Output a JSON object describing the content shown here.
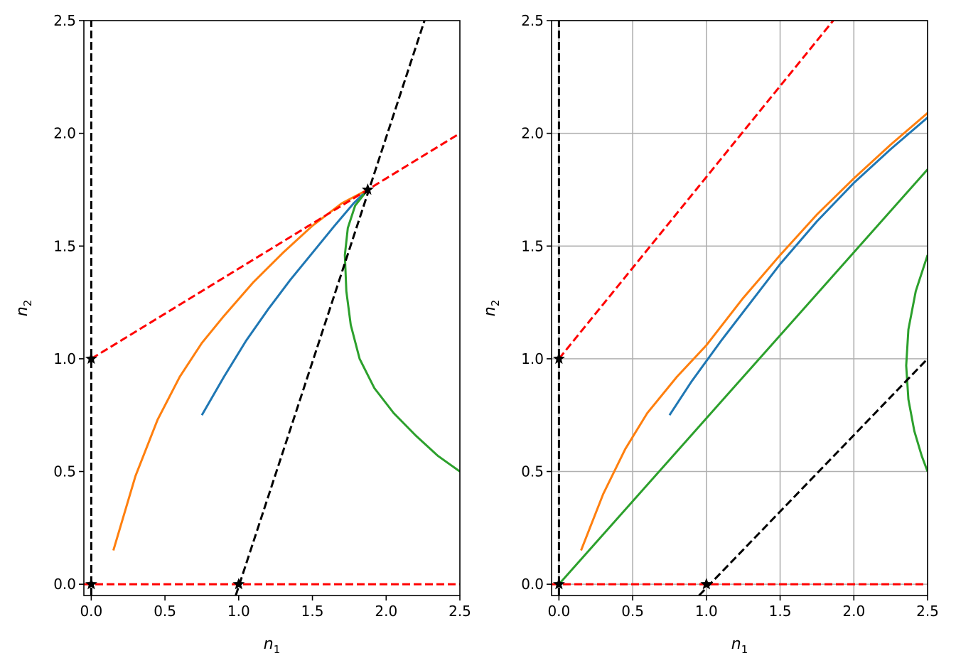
{
  "chart_data": [
    {
      "type": "line",
      "title": "",
      "xlabel": {
        "main": "n",
        "sub": "1"
      },
      "ylabel": {
        "main": "n",
        "sub": "2"
      },
      "xlim": [
        -0.05,
        2.5
      ],
      "ylim": [
        -0.05,
        2.5
      ],
      "grid": false,
      "xticks": [
        0.0,
        0.5,
        1.0,
        1.5,
        2.0,
        2.5
      ],
      "yticks": [
        0.0,
        0.5,
        1.0,
        1.5,
        2.0,
        2.5
      ],
      "xtick_labels": [
        "0.0",
        "0.5",
        "1.0",
        "1.5",
        "2.0",
        "2.5"
      ],
      "ytick_labels": [
        "0.0",
        "0.5",
        "1.0",
        "1.5",
        "2.0",
        "2.5"
      ],
      "nullclines": [
        {
          "style": "dashed",
          "color": "#ff0000",
          "points": [
            [
              0,
              1.0
            ],
            [
              2.5,
              2.0
            ]
          ]
        },
        {
          "style": "dashed",
          "color": "#ff0000",
          "points": [
            [
              -0.05,
              0
            ],
            [
              2.5,
              0
            ]
          ]
        },
        {
          "style": "dashed",
          "color": "#000000",
          "points": [
            [
              0,
              -0.05
            ],
            [
              0,
              2.5
            ]
          ]
        },
        {
          "style": "dashed",
          "color": "#000000",
          "points": [
            [
              0.98,
              -0.05
            ],
            [
              2.26,
              2.5
            ]
          ]
        }
      ],
      "series": [
        {
          "color": "#1f77b4",
          "points": [
            [
              0.75,
              0.75
            ],
            [
              0.9,
              0.92
            ],
            [
              1.05,
              1.08
            ],
            [
              1.2,
              1.22
            ],
            [
              1.35,
              1.35
            ],
            [
              1.5,
              1.47
            ],
            [
              1.65,
              1.59
            ],
            [
              1.78,
              1.69
            ],
            [
              1.875,
              1.75
            ]
          ]
        },
        {
          "color": "#ff7f0e",
          "points": [
            [
              0.15,
              0.15
            ],
            [
              0.3,
              0.48
            ],
            [
              0.45,
              0.73
            ],
            [
              0.6,
              0.92
            ],
            [
              0.75,
              1.07
            ],
            [
              0.9,
              1.19
            ],
            [
              1.1,
              1.34
            ],
            [
              1.3,
              1.47
            ],
            [
              1.5,
              1.59
            ],
            [
              1.7,
              1.69
            ],
            [
              1.875,
              1.75
            ]
          ]
        },
        {
          "color": "#2ca02c",
          "points": [
            [
              1.875,
              1.75
            ],
            [
              1.79,
              1.68
            ],
            [
              1.74,
              1.58
            ],
            [
              1.72,
              1.46
            ],
            [
              1.73,
              1.3
            ],
            [
              1.76,
              1.15
            ],
            [
              1.82,
              1.0
            ],
            [
              1.92,
              0.87
            ],
            [
              2.05,
              0.76
            ],
            [
              2.2,
              0.66
            ],
            [
              2.35,
              0.57
            ],
            [
              2.5,
              0.5
            ]
          ]
        }
      ],
      "fixed_points": [
        [
          0,
          0
        ],
        [
          0,
          1.0
        ],
        [
          1.0,
          0
        ],
        [
          1.875,
          1.75
        ]
      ]
    },
    {
      "type": "line",
      "title": "",
      "xlabel": {
        "main": "n",
        "sub": "1"
      },
      "ylabel": {
        "main": "n",
        "sub": "2"
      },
      "xlim": [
        -0.05,
        2.5
      ],
      "ylim": [
        -0.05,
        2.5
      ],
      "grid": true,
      "xticks": [
        0.0,
        0.5,
        1.0,
        1.5,
        2.0,
        2.5
      ],
      "yticks": [
        0.0,
        0.5,
        1.0,
        1.5,
        2.0,
        2.5
      ],
      "xtick_labels": [
        "0.0",
        "0.5",
        "1.0",
        "1.5",
        "2.0",
        "2.5"
      ],
      "ytick_labels": [
        "0.0",
        "0.5",
        "1.0",
        "1.5",
        "2.0",
        "2.5"
      ],
      "nullclines": [
        {
          "style": "dashed",
          "color": "#ff0000",
          "points": [
            [
              0,
              1.0
            ],
            [
              1.86,
              2.5
            ]
          ]
        },
        {
          "style": "dashed",
          "color": "#ff0000",
          "points": [
            [
              -0.05,
              0
            ],
            [
              2.5,
              0
            ]
          ]
        },
        {
          "style": "dashed",
          "color": "#000000",
          "points": [
            [
              0,
              -0.05
            ],
            [
              0,
              2.5
            ]
          ]
        },
        {
          "style": "dashed",
          "color": "#000000",
          "points": [
            [
              0.95,
              -0.05
            ],
            [
              2.5,
              1.0
            ]
          ]
        }
      ],
      "series": [
        {
          "color": "#1f77b4",
          "points": [
            [
              0.75,
              0.75
            ],
            [
              0.9,
              0.9
            ],
            [
              1.1,
              1.08
            ],
            [
              1.3,
              1.25
            ],
            [
              1.5,
              1.42
            ],
            [
              1.75,
              1.61
            ],
            [
              2.0,
              1.78
            ],
            [
              2.25,
              1.93
            ],
            [
              2.5,
              2.07
            ]
          ]
        },
        {
          "color": "#ff7f0e",
          "points": [
            [
              0.15,
              0.15
            ],
            [
              0.3,
              0.4
            ],
            [
              0.45,
              0.6
            ],
            [
              0.6,
              0.76
            ],
            [
              0.8,
              0.92
            ],
            [
              1.0,
              1.06
            ],
            [
              1.25,
              1.27
            ],
            [
              1.5,
              1.46
            ],
            [
              1.75,
              1.64
            ],
            [
              2.0,
              1.8
            ],
            [
              2.25,
              1.95
            ],
            [
              2.5,
              2.09
            ]
          ]
        },
        {
          "color": "#2ca02c",
          "points": [
            [
              0,
              0
            ],
            [
              2.5,
              1.84
            ]
          ]
        },
        {
          "color": "#2ca02c",
          "points": [
            [
              2.5,
              1.46
            ],
            [
              2.42,
              1.3
            ],
            [
              2.37,
              1.13
            ],
            [
              2.355,
              0.97
            ],
            [
              2.37,
              0.82
            ],
            [
              2.41,
              0.68
            ],
            [
              2.46,
              0.57
            ],
            [
              2.5,
              0.5
            ]
          ]
        }
      ],
      "fixed_points": [
        [
          0,
          0
        ],
        [
          0,
          1.0
        ],
        [
          1.0,
          0
        ]
      ]
    }
  ]
}
